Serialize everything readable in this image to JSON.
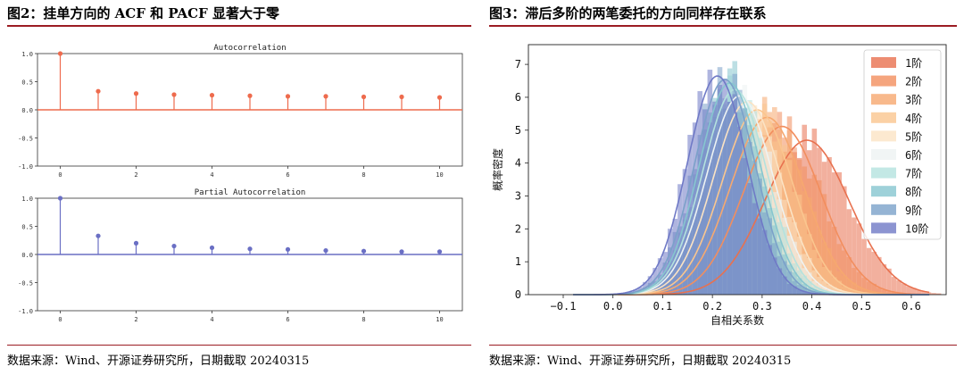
{
  "left_panel": {
    "title": "图2：挂单方向的 ACF 和 PACF 显著大于零",
    "source": "数据来源：Wind、开源证券研究所，日期截取 20240315"
  },
  "right_panel": {
    "title": "图3：滞后多阶的两笔委托的方向同样存在联系",
    "source": "数据来源：Wind、开源证券研究所，日期截取 20240315"
  },
  "chart_data": [
    {
      "type": "stem",
      "title": "Autocorrelation",
      "x": [
        0,
        1,
        2,
        3,
        4,
        5,
        6,
        7,
        8,
        9,
        10
      ],
      "values": [
        1.0,
        0.33,
        0.29,
        0.27,
        0.26,
        0.25,
        0.24,
        0.24,
        0.23,
        0.23,
        0.22
      ],
      "xlim": [
        -0.6,
        10.6
      ],
      "ylim": [
        -1.0,
        1.0
      ],
      "xticks": [
        "0",
        "2",
        "4",
        "6",
        "8",
        "10"
      ],
      "yticks": [
        "1.0",
        "0.5",
        "0.0",
        "-0.5",
        "-1.0"
      ],
      "color": "#ee6b4d"
    },
    {
      "type": "stem",
      "title": "Partial Autocorrelation",
      "x": [
        0,
        1,
        2,
        3,
        4,
        5,
        6,
        7,
        8,
        9,
        10
      ],
      "values": [
        1.0,
        0.33,
        0.2,
        0.15,
        0.12,
        0.1,
        0.09,
        0.07,
        0.06,
        0.05,
        0.05
      ],
      "xlim": [
        -0.6,
        10.6
      ],
      "ylim": [
        -1.0,
        1.0
      ],
      "xticks": [
        "0",
        "2",
        "4",
        "6",
        "8",
        "10"
      ],
      "yticks": [
        "1.0",
        "0.5",
        "0.0",
        "-0.5",
        "-1.0"
      ],
      "color": "#6a6fc4"
    },
    {
      "type": "histogram-kde",
      "xlabel": "自相关系数",
      "ylabel": "概率密度",
      "xlim": [
        -0.17,
        0.67
      ],
      "ylim": [
        0,
        7.6
      ],
      "xticks": [
        "−0.1",
        "0.0",
        "0.1",
        "0.2",
        "0.3",
        "0.4",
        "0.5",
        "0.6"
      ],
      "yticks": [
        "0",
        "1",
        "2",
        "3",
        "4",
        "5",
        "6",
        "7"
      ],
      "legend_position": "top-right",
      "series": [
        {
          "name": "1阶",
          "mean": 0.39,
          "sd": 0.085,
          "color": "#e8714f"
        },
        {
          "name": "2阶",
          "mean": 0.34,
          "sd": 0.078,
          "color": "#f28e5e"
        },
        {
          "name": "3阶",
          "mean": 0.31,
          "sd": 0.074,
          "color": "#f6a86f"
        },
        {
          "name": "4阶",
          "mean": 0.29,
          "sd": 0.071,
          "color": "#fac68f"
        },
        {
          "name": "5阶",
          "mean": 0.27,
          "sd": 0.068,
          "color": "#fbe3c4"
        },
        {
          "name": "6阶",
          "mean": 0.255,
          "sd": 0.066,
          "color": "#eef3f3"
        },
        {
          "name": "7阶",
          "mean": 0.245,
          "sd": 0.064,
          "color": "#b4e2de"
        },
        {
          "name": "8阶",
          "mean": 0.235,
          "sd": 0.062,
          "color": "#86c6cf"
        },
        {
          "name": "9阶",
          "mean": 0.225,
          "sd": 0.061,
          "color": "#7ba1c9"
        },
        {
          "name": "10阶",
          "mean": 0.21,
          "sd": 0.06,
          "color": "#6f79c6"
        }
      ]
    }
  ]
}
